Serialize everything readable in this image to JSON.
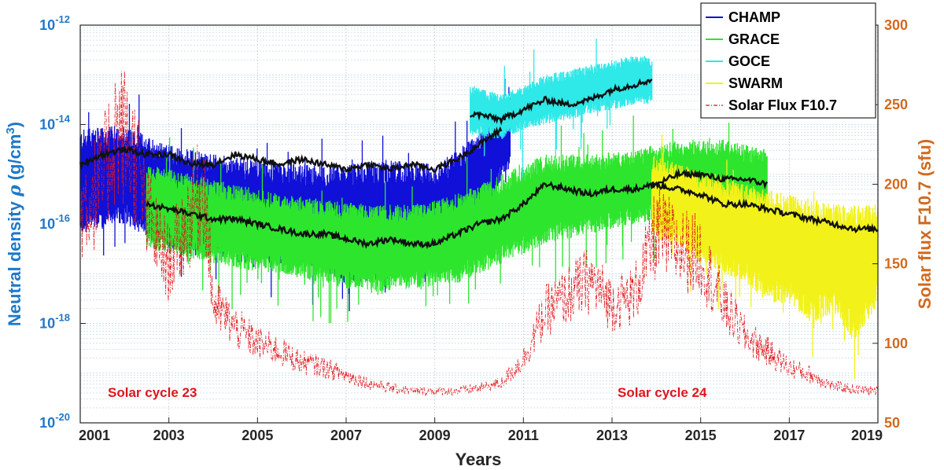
{
  "chart_data": {
    "type": "line",
    "xlabel": "Years",
    "ylabel_left": "Neutral density ρ (g/cm³)",
    "ylabel_left_parts": {
      "main": "Neutral density ",
      "rho": "ρ",
      "unit": " (g/cm",
      "sup": "3",
      "close": ")"
    },
    "ylabel_right": "Solar flux F10.7 (sfu)",
    "xlim": [
      2001,
      2019
    ],
    "x_ticks": [
      "2001",
      "2003",
      "2005",
      "2007",
      "2009",
      "2011",
      "2013",
      "2015",
      "2017",
      "2019"
    ],
    "y_left_scale": "log",
    "y_left_lim": [
      1e-20,
      1e-12
    ],
    "y_left_ticks": [
      {
        "base": "10",
        "exp": "-12"
      },
      {
        "base": "10",
        "exp": "-14"
      },
      {
        "base": "10",
        "exp": "-16"
      },
      {
        "base": "10",
        "exp": "-18"
      },
      {
        "base": "10",
        "exp": "-20"
      }
    ],
    "y_right_lim": [
      50,
      300
    ],
    "y_right_ticks": [
      "300",
      "250",
      "200",
      "150",
      "100",
      "50"
    ],
    "grid": true,
    "legend_position": "top-right",
    "series": [
      {
        "name": "CHAMP",
        "color": "#1010d8",
        "axis": "left",
        "time_range": [
          2001.0,
          2010.7
        ],
        "band_log10": [
          [
            2001.0,
            -16.2,
            -14.1
          ],
          [
            2002.0,
            -16.0,
            -14.0
          ],
          [
            2003.0,
            -16.5,
            -14.4
          ],
          [
            2004.0,
            -16.6,
            -14.6
          ],
          [
            2005.0,
            -16.9,
            -14.7
          ],
          [
            2006.0,
            -16.8,
            -14.8
          ],
          [
            2007.0,
            -17.2,
            -14.8
          ],
          [
            2008.0,
            -17.1,
            -14.7
          ],
          [
            2009.0,
            -17.0,
            -14.8
          ],
          [
            2010.0,
            -16.0,
            -14.2
          ],
          [
            2010.7,
            -14.8,
            -13.4
          ]
        ],
        "mean_log10": [
          [
            2001.0,
            -14.8
          ],
          [
            2001.5,
            -14.6
          ],
          [
            2002.0,
            -14.5
          ],
          [
            2002.5,
            -14.6
          ],
          [
            2003.0,
            -14.6
          ],
          [
            2003.5,
            -14.8
          ],
          [
            2004.0,
            -14.8
          ],
          [
            2004.5,
            -14.6
          ],
          [
            2005.0,
            -14.7
          ],
          [
            2005.5,
            -14.8
          ],
          [
            2006.0,
            -14.7
          ],
          [
            2006.5,
            -14.8
          ],
          [
            2007.0,
            -14.9
          ],
          [
            2007.5,
            -14.8
          ],
          [
            2008.0,
            -14.9
          ],
          [
            2008.5,
            -14.8
          ],
          [
            2009.0,
            -14.9
          ],
          [
            2009.5,
            -14.7
          ],
          [
            2010.0,
            -14.4
          ],
          [
            2010.5,
            -14.1
          ]
        ]
      },
      {
        "name": "GRACE",
        "color": "#2ee52e",
        "axis": "left",
        "time_range": [
          2002.5,
          2016.5
        ],
        "band_log10": [
          [
            2002.5,
            -16.5,
            -14.8
          ],
          [
            2003.5,
            -16.7,
            -15.0
          ],
          [
            2004.5,
            -16.9,
            -15.2
          ],
          [
            2005.5,
            -17.0,
            -15.4
          ],
          [
            2006.5,
            -17.2,
            -15.5
          ],
          [
            2007.5,
            -17.4,
            -15.6
          ],
          [
            2008.5,
            -17.3,
            -15.6
          ],
          [
            2009.5,
            -17.2,
            -15.4
          ],
          [
            2010.5,
            -16.8,
            -15.0
          ],
          [
            2011.5,
            -16.4,
            -14.6
          ],
          [
            2012.5,
            -16.2,
            -14.6
          ],
          [
            2013.5,
            -16.0,
            -14.5
          ],
          [
            2014.5,
            -15.9,
            -14.3
          ],
          [
            2015.5,
            -15.9,
            -14.3
          ],
          [
            2016.5,
            -16.0,
            -14.5
          ]
        ],
        "mean_log10": [
          [
            2002.5,
            -15.6
          ],
          [
            2003.0,
            -15.7
          ],
          [
            2003.5,
            -15.8
          ],
          [
            2004.0,
            -15.9
          ],
          [
            2004.5,
            -15.9
          ],
          [
            2005.0,
            -16.0
          ],
          [
            2005.5,
            -16.1
          ],
          [
            2006.0,
            -16.2
          ],
          [
            2006.5,
            -16.2
          ],
          [
            2007.0,
            -16.3
          ],
          [
            2007.5,
            -16.4
          ],
          [
            2008.0,
            -16.3
          ],
          [
            2008.5,
            -16.4
          ],
          [
            2009.0,
            -16.4
          ],
          [
            2009.5,
            -16.2
          ],
          [
            2010.0,
            -16.0
          ],
          [
            2010.5,
            -15.9
          ],
          [
            2011.0,
            -15.6
          ],
          [
            2011.5,
            -15.2
          ],
          [
            2012.0,
            -15.3
          ],
          [
            2012.5,
            -15.4
          ],
          [
            2013.0,
            -15.3
          ],
          [
            2013.5,
            -15.3
          ],
          [
            2014.0,
            -15.2
          ],
          [
            2014.5,
            -15.0
          ],
          [
            2015.0,
            -15.0
          ],
          [
            2015.5,
            -15.1
          ],
          [
            2016.0,
            -15.1
          ],
          [
            2016.5,
            -15.2
          ]
        ]
      },
      {
        "name": "GOCE",
        "color": "#2fe8e8",
        "axis": "left",
        "time_range": [
          2009.8,
          2013.9
        ],
        "band_log10": [
          [
            2009.8,
            -14.2,
            -13.2
          ],
          [
            2010.5,
            -14.3,
            -13.4
          ],
          [
            2011.0,
            -14.1,
            -13.2
          ],
          [
            2011.5,
            -14.0,
            -13.0
          ],
          [
            2012.0,
            -13.9,
            -12.9
          ],
          [
            2012.5,
            -13.8,
            -12.8
          ],
          [
            2013.0,
            -13.7,
            -12.7
          ],
          [
            2013.5,
            -13.6,
            -12.6
          ],
          [
            2013.9,
            -13.6,
            -12.6
          ]
        ],
        "mean_log10": [
          [
            2009.8,
            -13.8
          ],
          [
            2010.0,
            -13.8
          ],
          [
            2010.5,
            -13.9
          ],
          [
            2011.0,
            -13.7
          ],
          [
            2011.5,
            -13.5
          ],
          [
            2012.0,
            -13.6
          ],
          [
            2012.5,
            -13.5
          ],
          [
            2013.0,
            -13.3
          ],
          [
            2013.5,
            -13.2
          ],
          [
            2013.9,
            -13.1
          ]
        ]
      },
      {
        "name": "SWARM",
        "color": "#f2f21a",
        "axis": "left",
        "time_range": [
          2013.9,
          2019.0
        ],
        "band_log10": [
          [
            2013.9,
            -16.3,
            -14.6
          ],
          [
            2014.5,
            -16.4,
            -14.8
          ],
          [
            2015.0,
            -16.8,
            -14.9
          ],
          [
            2015.5,
            -17.0,
            -15.0
          ],
          [
            2016.0,
            -17.2,
            -15.2
          ],
          [
            2016.5,
            -17.6,
            -15.3
          ],
          [
            2017.0,
            -17.6,
            -15.4
          ],
          [
            2017.5,
            -18.0,
            -15.5
          ],
          [
            2018.0,
            -17.8,
            -15.6
          ],
          [
            2018.5,
            -18.4,
            -15.6
          ],
          [
            2019.0,
            -17.6,
            -15.6
          ]
        ],
        "mean_log10": [
          [
            2013.9,
            -15.2
          ],
          [
            2014.5,
            -15.3
          ],
          [
            2015.0,
            -15.4
          ],
          [
            2015.5,
            -15.6
          ],
          [
            2016.0,
            -15.6
          ],
          [
            2016.5,
            -15.7
          ],
          [
            2017.0,
            -15.8
          ],
          [
            2017.5,
            -15.9
          ],
          [
            2018.0,
            -16.0
          ],
          [
            2018.5,
            -16.1
          ],
          [
            2019.0,
            -16.1
          ]
        ]
      },
      {
        "name": "Solar Flux F10.7",
        "color": "#e0151b",
        "axis": "right",
        "style": "dash-dot",
        "x": [
          2001.0,
          2001.5,
          2001.8,
          2002.0,
          2002.3,
          2002.5,
          2003.0,
          2003.8,
          2004.0,
          2004.5,
          2005.0,
          2005.5,
          2006.0,
          2006.5,
          2007.0,
          2007.5,
          2008.0,
          2008.5,
          2009.0,
          2009.5,
          2010.0,
          2010.5,
          2011.0,
          2011.5,
          2012.0,
          2012.5,
          2013.0,
          2013.5,
          2014.0,
          2014.5,
          2015.0,
          2015.5,
          2016.0,
          2016.5,
          2017.0,
          2017.5,
          2018.0,
          2018.5,
          2019.0
        ],
        "values": [
          185,
          200,
          235,
          230,
          210,
          180,
          150,
          200,
          125,
          110,
          100,
          95,
          88,
          85,
          80,
          75,
          72,
          70,
          70,
          70,
          72,
          75,
          90,
          120,
          130,
          140,
          125,
          130,
          170,
          160,
          155,
          125,
          105,
          95,
          85,
          80,
          73,
          71,
          70
        ]
      }
    ],
    "annotations": [
      "Solar cycle 23",
      "Solar cycle 24"
    ]
  }
}
